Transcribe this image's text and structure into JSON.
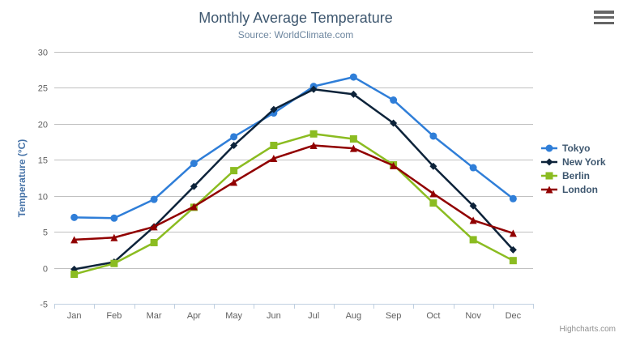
{
  "header": {
    "title": "Monthly Average Temperature",
    "subtitle": "Source: WorldClimate.com"
  },
  "menu": {
    "icon": "hamburger-menu-icon"
  },
  "credits": {
    "label": "Highcharts.com"
  },
  "colors": {
    "title": "#3E576F",
    "subtitle": "#6D869F",
    "axis_label": "#606060",
    "yaxis_title": "#4572A7",
    "gridline": "#C0C0C0",
    "axis_line": "#C0D0E0",
    "legend_text": "#3E576F",
    "credits": "#909090",
    "menu_icon": "#666666"
  },
  "chart_data": {
    "type": "line",
    "title": "Monthly Average Temperature",
    "subtitle": "Source: WorldClimate.com",
    "categories": [
      "Jan",
      "Feb",
      "Mar",
      "Apr",
      "May",
      "Jun",
      "Jul",
      "Aug",
      "Sep",
      "Oct",
      "Nov",
      "Dec"
    ],
    "xlabel": "",
    "ylabel": "Temperature (°C)",
    "ylim": [
      -5,
      30
    ],
    "ytick_interval": 5,
    "yticks": [
      -5,
      0,
      5,
      10,
      15,
      20,
      25,
      30
    ],
    "grid": true,
    "legend_position": "right",
    "series": [
      {
        "name": "Tokyo",
        "color": "#2f7ed8",
        "marker": "circle",
        "values": [
          7.0,
          6.9,
          9.5,
          14.5,
          18.2,
          21.5,
          25.2,
          26.5,
          23.3,
          18.3,
          13.9,
          9.6
        ]
      },
      {
        "name": "New York",
        "color": "#0d233a",
        "marker": "diamond",
        "values": [
          -0.2,
          0.8,
          5.7,
          11.3,
          17.0,
          22.0,
          24.8,
          24.1,
          20.1,
          14.1,
          8.6,
          2.5
        ]
      },
      {
        "name": "Berlin",
        "color": "#8bbc21",
        "marker": "square",
        "values": [
          -0.9,
          0.6,
          3.5,
          8.4,
          13.5,
          17.0,
          18.6,
          17.9,
          14.3,
          9.0,
          3.9,
          1.0
        ]
      },
      {
        "name": "London",
        "color": "#910000",
        "marker": "triangle",
        "values": [
          3.9,
          4.2,
          5.7,
          8.5,
          11.9,
          15.2,
          17.0,
          16.6,
          14.2,
          10.3,
          6.6,
          4.8
        ]
      }
    ]
  }
}
